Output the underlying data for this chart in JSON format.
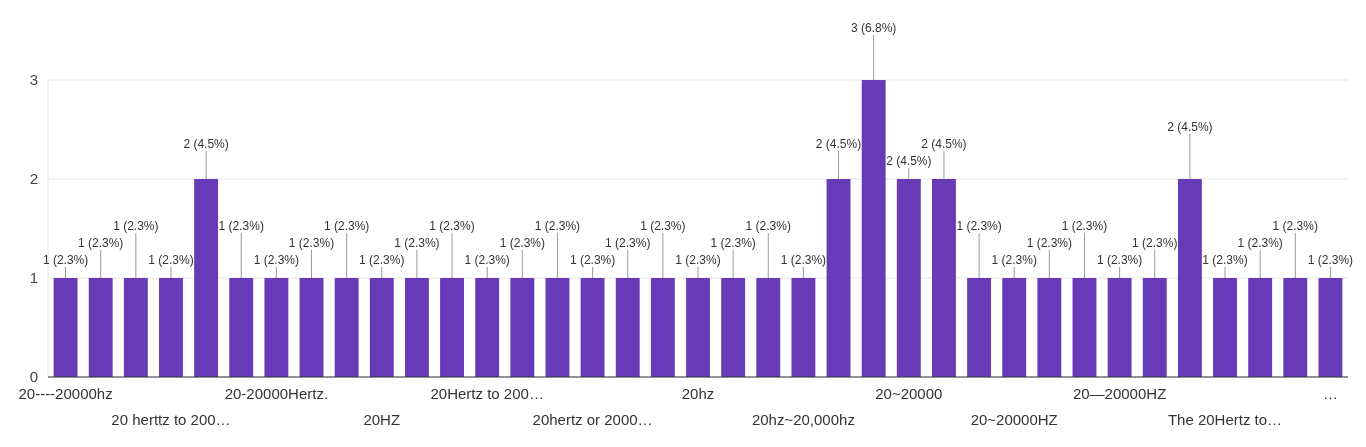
{
  "chart_data": {
    "type": "bar",
    "categories": [
      "20----20000hz",
      null,
      null,
      "20 herttz to 200…",
      null,
      null,
      "20-20000Hertz.",
      null,
      null,
      "20HZ",
      null,
      null,
      "20Hertz to 200…",
      null,
      null,
      "20hertz or 2000…",
      null,
      null,
      "20hz",
      null,
      null,
      "20hz~20,000hz",
      null,
      null,
      "20~20000",
      null,
      null,
      "20~20000HZ",
      null,
      null,
      "20—20000HZ",
      null,
      null,
      "The 20Hertz to…",
      null,
      null,
      "…"
    ],
    "values": [
      1,
      1,
      1,
      1,
      2,
      1,
      1,
      1,
      1,
      1,
      1,
      1,
      1,
      1,
      1,
      1,
      1,
      1,
      1,
      1,
      1,
      1,
      2,
      3,
      2,
      2,
      1,
      1,
      1,
      1,
      1,
      1,
      2,
      1,
      1,
      1,
      1
    ],
    "value_labels": [
      "1 (2.3%)",
      "1 (2.3%)",
      "1 (2.3%)",
      "1 (2.3%)",
      "2 (4.5%)",
      "1 (2.3%)",
      "1 (2.3%)",
      "1 (2.3%)",
      "1 (2.3%)",
      "1 (2.3%)",
      "1 (2.3%)",
      "1 (2.3%)",
      "1 (2.3%)",
      "1 (2.3%)",
      "1 (2.3%)",
      "1 (2.3%)",
      "1 (2.3%)",
      "1 (2.3%)",
      "1 (2.3%)",
      "1 (2.3%)",
      "1 (2.3%)",
      "1 (2.3%)",
      "2 (4.5%)",
      "3 (6.8%)",
      "2 (4.5%)",
      "2 (4.5%)",
      "1 (2.3%)",
      "1 (2.3%)",
      "1 (2.3%)",
      "1 (2.3%)",
      "1 (2.3%)",
      "1 (2.3%)",
      "2 (4.5%)",
      "1 (2.3%)",
      "1 (2.3%)",
      "1 (2.3%)",
      "1 (2.3%)"
    ],
    "color": "#673ab7",
    "ylim": [
      0,
      3
    ],
    "yticks": [
      0,
      1,
      2,
      3
    ],
    "grid": "y"
  }
}
